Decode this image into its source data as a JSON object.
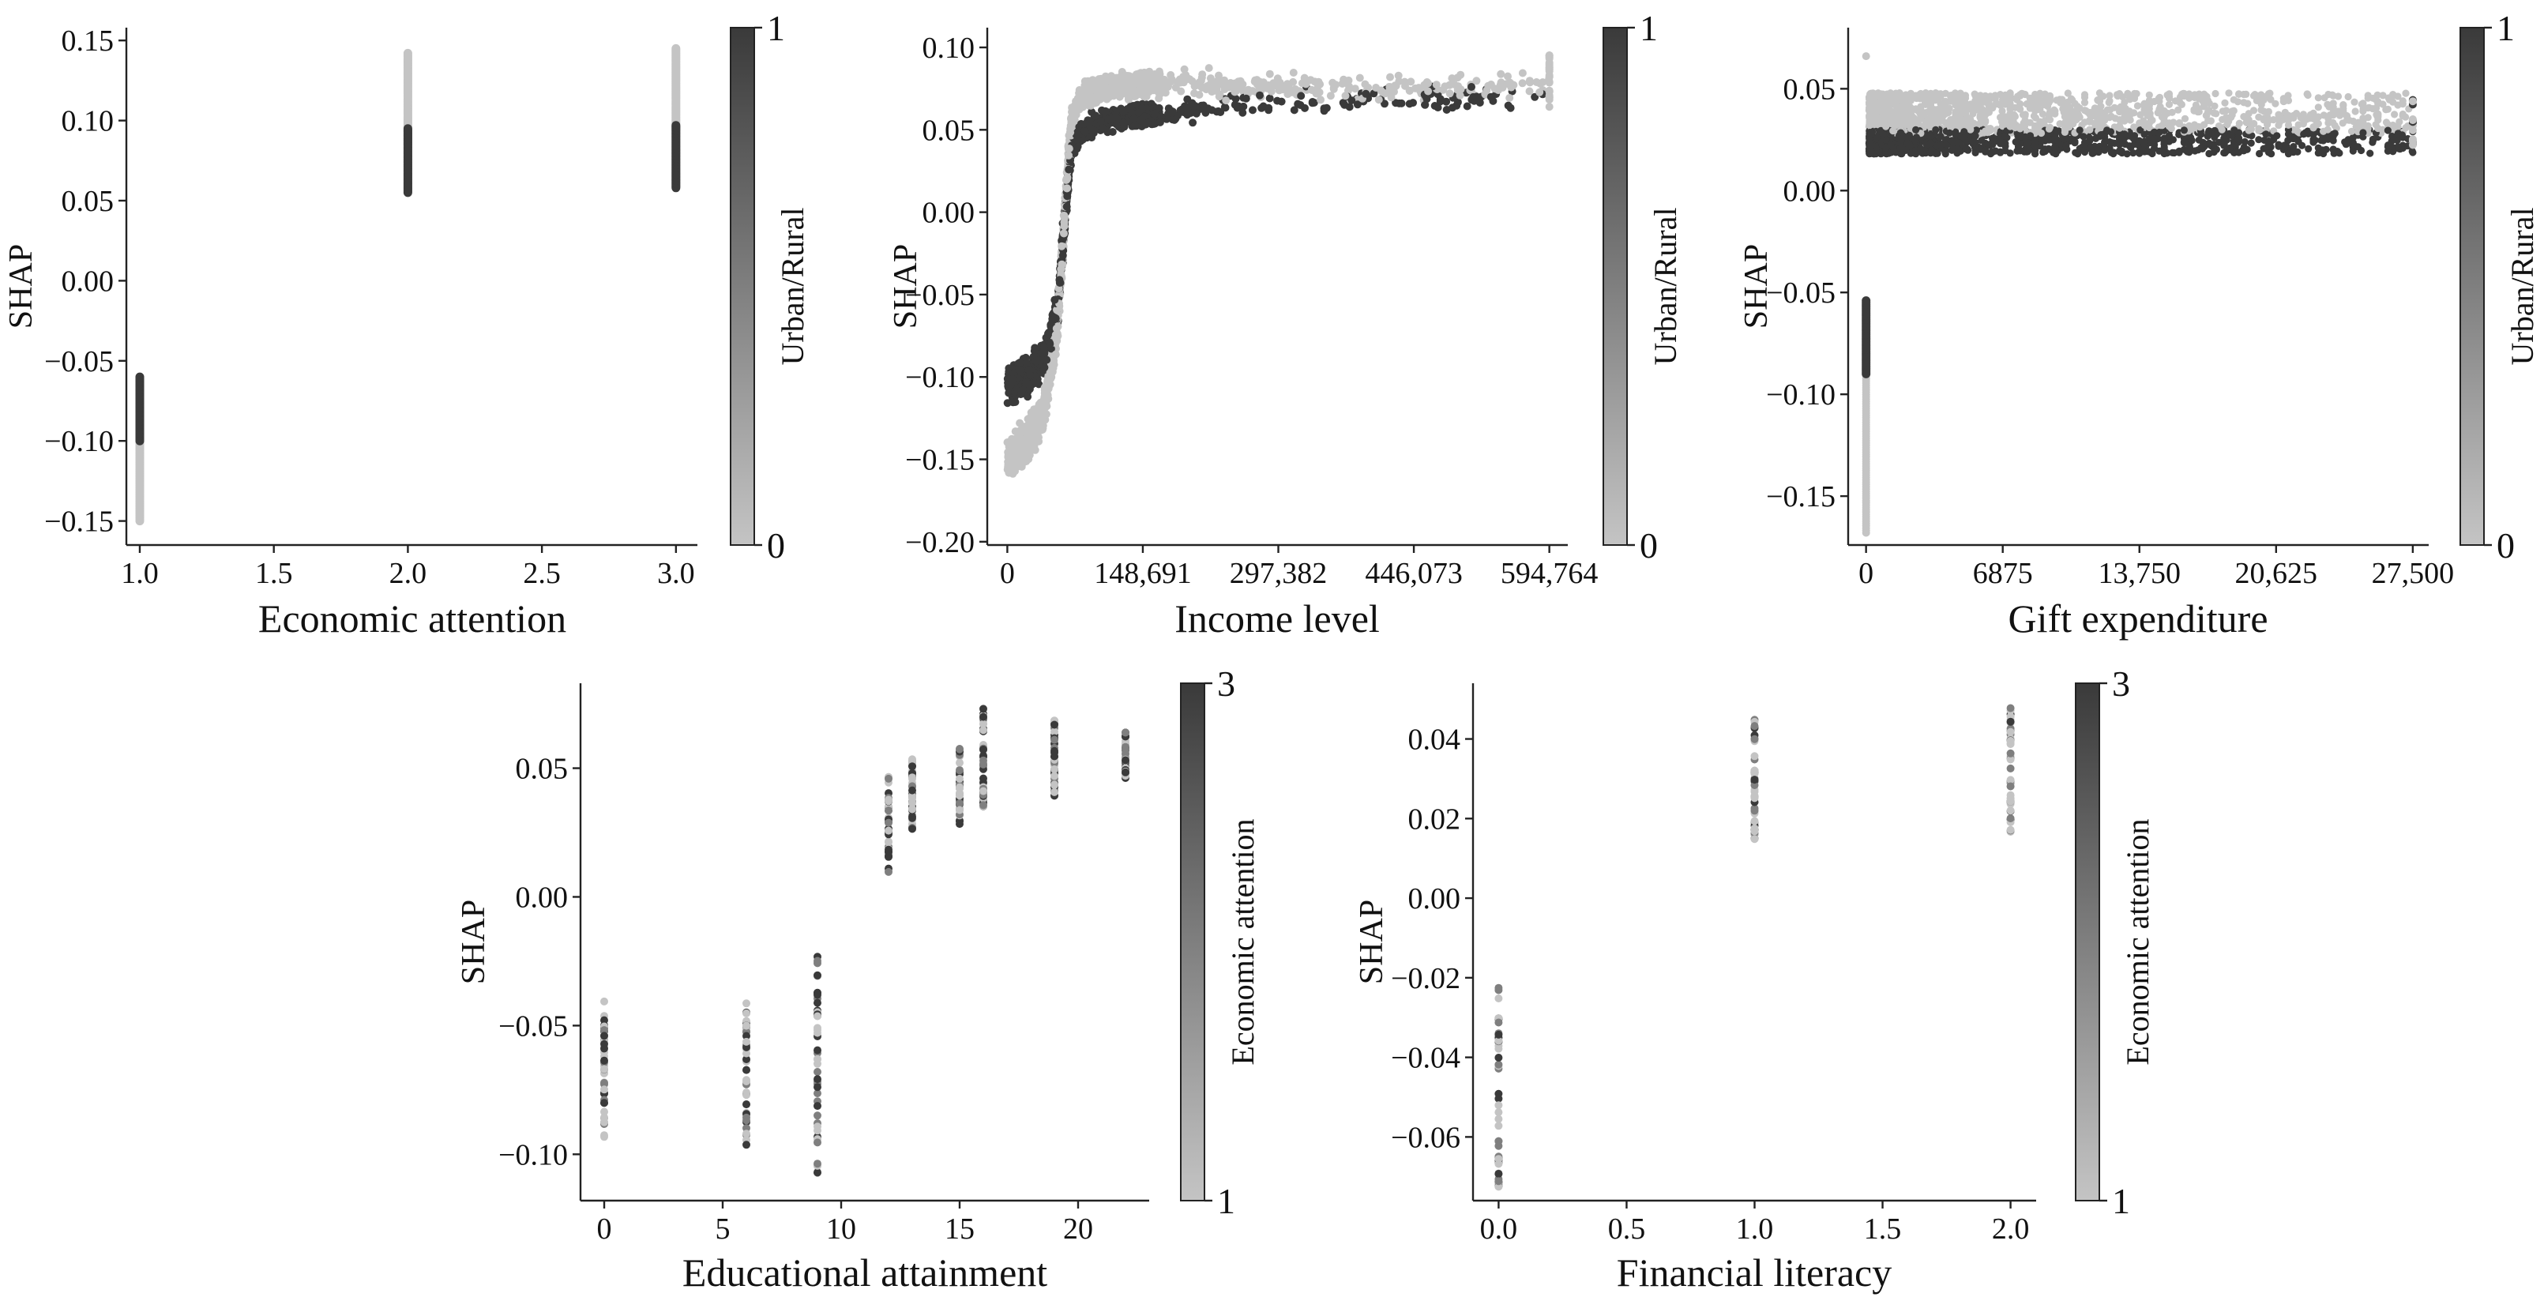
{
  "chart_data": [
    {
      "type": "scatter",
      "xlabel": "Economic attention",
      "ylabel": "SHAP",
      "xlim": [
        0.95,
        3.08
      ],
      "ylim": [
        -0.165,
        0.158
      ],
      "xticks": [
        1.0,
        1.5,
        2.0,
        2.5,
        3.0
      ],
      "xtick_labels": [
        "1.0",
        "1.5",
        "2.0",
        "2.5",
        "3.0"
      ],
      "yticks": [
        -0.15,
        -0.1,
        -0.05,
        0.0,
        0.05,
        0.1,
        0.15
      ],
      "ytick_labels": [
        "−0.15",
        "−0.10",
        "−0.05",
        "0.00",
        "0.05",
        "0.10",
        "0.15"
      ],
      "colorbar": {
        "label": "Urban/Rural",
        "min": 0,
        "max": 1,
        "tick_labels": [
          "0",
          "1"
        ]
      },
      "groups": [
        {
          "x": 1.0,
          "color_value": 0,
          "y_range": [
            -0.15,
            -0.085
          ]
        },
        {
          "x": 1.0,
          "color_value": 1,
          "y_range": [
            -0.1,
            -0.06
          ]
        },
        {
          "x": 2.0,
          "color_value": 0,
          "y_range": [
            0.085,
            0.142
          ]
        },
        {
          "x": 2.0,
          "color_value": 1,
          "y_range": [
            0.055,
            0.095
          ]
        },
        {
          "x": 3.0,
          "color_value": 0,
          "y_range": [
            0.095,
            0.145
          ]
        },
        {
          "x": 3.0,
          "color_value": 1,
          "y_range": [
            0.058,
            0.097
          ]
        }
      ]
    },
    {
      "type": "scatter",
      "xlabel": "Income level",
      "ylabel": "SHAP",
      "xlim": [
        -22000,
        615000
      ],
      "ylim": [
        -0.202,
        0.112
      ],
      "xticks": [
        0,
        148691,
        297382,
        446073,
        594764
      ],
      "xtick_labels": [
        "0",
        "148,691",
        "297,382",
        "446,073",
        "594,764"
      ],
      "yticks": [
        -0.2,
        -0.15,
        -0.1,
        -0.05,
        0.0,
        0.05,
        0.1
      ],
      "ytick_labels": [
        "−0.20",
        "−0.15",
        "−0.10",
        "−0.05",
        "0.00",
        "0.05",
        "0.10"
      ],
      "colorbar": {
        "label": "Urban/Rural",
        "min": 0,
        "max": 1,
        "tick_labels": [
          "0",
          "1"
        ]
      },
      "trend": {
        "x": [
          0,
          20000,
          40000,
          55000,
          62000,
          70000,
          80000,
          100000,
          150000,
          250000,
          400000,
          594764
        ],
        "rural_y": [
          -0.105,
          -0.1,
          -0.09,
          -0.06,
          -0.01,
          0.04,
          0.047,
          0.055,
          0.06,
          0.065,
          0.068,
          0.07
        ],
        "urban_y": [
          -0.15,
          -0.14,
          -0.12,
          -0.07,
          -0.01,
          0.055,
          0.07,
          0.075,
          0.078,
          0.077,
          0.075,
          0.078
        ]
      }
    },
    {
      "type": "scatter",
      "xlabel": "Gift expenditure",
      "ylabel": "SHAP",
      "xlim": [
        -900,
        28300
      ],
      "ylim": [
        -0.174,
        0.08
      ],
      "xticks": [
        0,
        6875,
        13750,
        20625,
        27500
      ],
      "xtick_labels": [
        "0",
        "6875",
        "13,750",
        "20,625",
        "27,500"
      ],
      "yticks": [
        -0.15,
        -0.1,
        -0.05,
        0.0,
        0.05
      ],
      "ytick_labels": [
        "−0.15",
        "−0.10",
        "−0.05",
        "0.00",
        "0.05"
      ],
      "colorbar": {
        "label": "Urban/Rural",
        "min": 0,
        "max": 1,
        "tick_labels": [
          "0",
          "1"
        ]
      },
      "zero_group": {
        "x": 0,
        "urban_range": [
          -0.168,
          -0.09
        ],
        "rural_range": [
          -0.09,
          -0.054
        ],
        "outlier_y": 0.066
      },
      "band": {
        "urban_range": [
          0.028,
          0.048
        ],
        "rural_range": [
          0.018,
          0.03
        ]
      }
    },
    {
      "type": "scatter",
      "xlabel": "Educational attainment",
      "ylabel": "SHAP",
      "xlim": [
        -1,
        23
      ],
      "ylim": [
        -0.118,
        0.083
      ],
      "xticks": [
        0,
        5,
        10,
        15,
        20
      ],
      "xtick_labels": [
        "0",
        "5",
        "10",
        "15",
        "20"
      ],
      "yticks": [
        -0.1,
        -0.05,
        0.0,
        0.05
      ],
      "ytick_labels": [
        "−0.10",
        "−0.05",
        "0.00",
        "0.05"
      ],
      "colorbar": {
        "label": "Economic attention",
        "min": 1,
        "max": 3,
        "tick_labels": [
          "1",
          "3"
        ]
      },
      "groups": [
        {
          "x": 0,
          "y_range": [
            -0.097,
            -0.04
          ]
        },
        {
          "x": 6,
          "y_range": [
            -0.098,
            -0.038
          ]
        },
        {
          "x": 9,
          "y_range": [
            -0.108,
            -0.022
          ]
        },
        {
          "x": 12,
          "y_range": [
            0.009,
            0.047
          ]
        },
        {
          "x": 13,
          "y_range": [
            0.025,
            0.054
          ]
        },
        {
          "x": 15,
          "y_range": [
            0.028,
            0.058
          ]
        },
        {
          "x": 16,
          "y_range": [
            0.035,
            0.074
          ]
        },
        {
          "x": 19,
          "y_range": [
            0.038,
            0.069
          ]
        },
        {
          "x": 22,
          "y_range": [
            0.046,
            0.064
          ]
        }
      ]
    },
    {
      "type": "scatter",
      "xlabel": "Financial literacy",
      "ylabel": "SHAP",
      "xlim": [
        -0.1,
        2.1
      ],
      "ylim": [
        -0.076,
        0.054
      ],
      "xticks": [
        0.0,
        0.5,
        1.0,
        1.5,
        2.0
      ],
      "xtick_labels": [
        "0.0",
        "0.5",
        "1.0",
        "1.5",
        "2.0"
      ],
      "yticks": [
        -0.06,
        -0.04,
        -0.02,
        0.0,
        0.02,
        0.04
      ],
      "ytick_labels": [
        "−0.06",
        "−0.04",
        "−0.02",
        "0.00",
        "0.02",
        "0.04"
      ],
      "colorbar": {
        "label": "Economic attention",
        "min": 1,
        "max": 3,
        "tick_labels": [
          "1",
          "3"
        ]
      },
      "groups": [
        {
          "x": 0.0,
          "y_range": [
            -0.073,
            -0.022
          ]
        },
        {
          "x": 1.0,
          "y_range": [
            0.014,
            0.045
          ]
        },
        {
          "x": 2.0,
          "y_range": [
            0.015,
            0.048
          ]
        }
      ]
    }
  ],
  "colors": {
    "low": "#c4c4c4",
    "high": "#3a3a3a"
  }
}
